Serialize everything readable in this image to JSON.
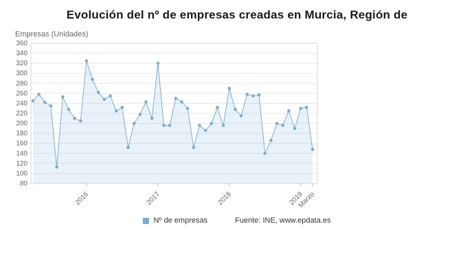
{
  "title": "Evolución del nº de empresas creadas en Murcia, Región de",
  "y_axis_title": "Empresas (Unidades)",
  "legend": {
    "series_label": "Nº de empresas",
    "source": "Fuente: INE, www.epdata.es"
  },
  "colors": {
    "line": "#77aed2",
    "area": "rgba(119,174,210,0.16)",
    "grid": "#e7e7e7",
    "border": "#d6d6d6",
    "tick_text": "#666666"
  },
  "chart_data": {
    "type": "line",
    "title": "Evolución del nº de empresas creadas en Murcia, Región de",
    "xlabel": "",
    "ylabel": "Empresas (Unidades)",
    "ylim": [
      80,
      360
    ],
    "y_tick_step": 20,
    "grid": true,
    "legend_position": "bottom",
    "x": [
      "2015-04",
      "2015-05",
      "2015-06",
      "2015-07",
      "2015-08",
      "2015-09",
      "2015-10",
      "2015-11",
      "2015-12",
      "2016-01",
      "2016-02",
      "2016-03",
      "2016-04",
      "2016-05",
      "2016-06",
      "2016-07",
      "2016-08",
      "2016-09",
      "2016-10",
      "2016-11",
      "2016-12",
      "2017-01",
      "2017-02",
      "2017-03",
      "2017-04",
      "2017-05",
      "2017-06",
      "2017-07",
      "2017-08",
      "2017-09",
      "2017-10",
      "2017-11",
      "2017-12",
      "2018-01",
      "2018-02",
      "2018-03",
      "2018-04",
      "2018-05",
      "2018-06",
      "2018-07",
      "2018-08",
      "2018-09",
      "2018-10",
      "2018-11",
      "2018-12",
      "2019-01",
      "2019-02",
      "2019-03"
    ],
    "x_tick_labels": [
      "2016",
      "2017",
      "2018",
      "2019",
      "Marzo"
    ],
    "x_tick_indices": [
      9,
      21,
      33,
      45,
      47
    ],
    "series": [
      {
        "name": "Nº de empresas",
        "values": [
          245,
          258,
          242,
          235,
          113,
          253,
          228,
          210,
          205,
          325,
          288,
          262,
          248,
          255,
          225,
          232,
          152,
          200,
          218,
          243,
          210,
          320,
          196,
          196,
          250,
          243,
          230,
          152,
          196,
          186,
          200,
          232,
          196,
          270,
          228,
          215,
          258,
          255,
          257,
          140,
          166,
          200,
          196,
          225,
          190,
          230,
          232,
          148
        ]
      }
    ]
  }
}
